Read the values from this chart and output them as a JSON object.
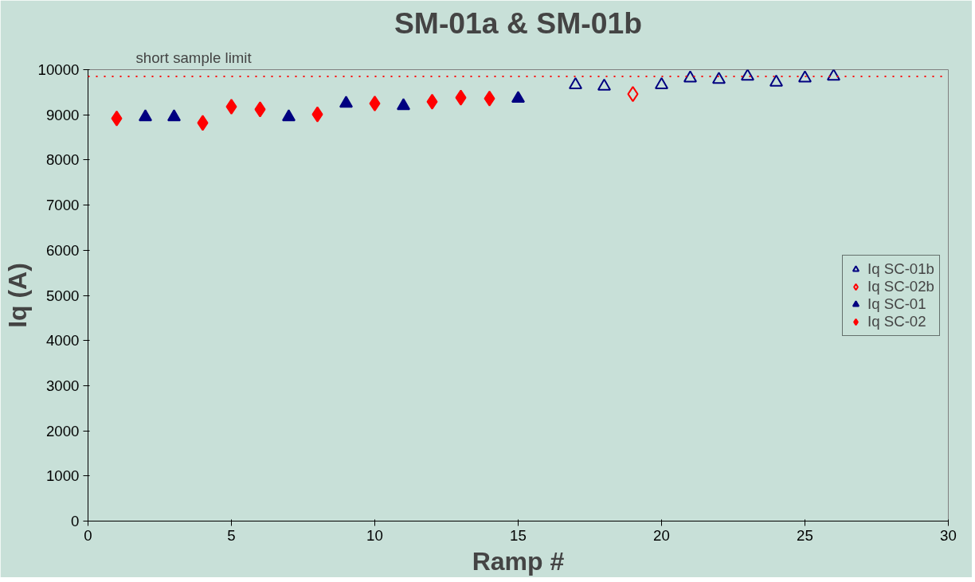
{
  "chart_data": {
    "type": "scatter",
    "title": "SM-01a & SM-01b",
    "xlabel": "Ramp #",
    "ylabel": "Iq (A)",
    "xlim": [
      0,
      30
    ],
    "xticks": [
      0,
      5,
      10,
      15,
      20,
      25,
      30
    ],
    "ylim": [
      0,
      10000
    ],
    "yticks": [
      0,
      1000,
      2000,
      3000,
      4000,
      5000,
      6000,
      7000,
      8000,
      9000,
      10000
    ],
    "grid": false,
    "legend": "right",
    "ref_lines": [
      {
        "axis": "y",
        "value": 9850,
        "label": "short sample limit",
        "color": "#ff0000",
        "line_style": "dotted"
      }
    ],
    "series": [
      {
        "name": "Iq SC-01b",
        "color": "#000080",
        "marker": "triangle-open",
        "x": [
          17,
          18,
          20,
          21,
          22,
          23,
          24,
          25,
          26
        ],
        "values": [
          9660,
          9630,
          9660,
          9810,
          9780,
          9850,
          9720,
          9810,
          9850
        ]
      },
      {
        "name": "Iq SC-02b",
        "color": "#ff0000",
        "marker": "diamond-open",
        "x": [
          19
        ],
        "values": [
          9460
        ]
      },
      {
        "name": "Iq SC-01",
        "color": "#000080",
        "marker": "triangle",
        "x": [
          2,
          3,
          7,
          9,
          11,
          15
        ],
        "values": [
          8950,
          8950,
          8950,
          9250,
          9200,
          9360
        ]
      },
      {
        "name": "Iq SC-02",
        "color": "#ff0000",
        "marker": "diamond",
        "x": [
          1,
          4,
          5,
          6,
          8,
          10,
          12,
          13,
          14
        ],
        "values": [
          8920,
          8820,
          9180,
          9120,
          9010,
          9250,
          9290,
          9380,
          9360
        ]
      }
    ]
  }
}
